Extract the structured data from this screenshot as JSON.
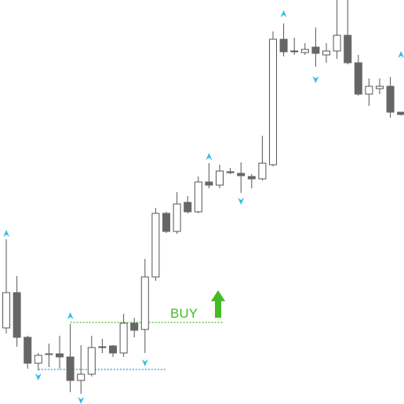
{
  "chart_data": {
    "type": "candlestick",
    "ylim": [
      0,
      515
    ],
    "open": [
      97,
      142,
      85,
      52,
      64,
      64,
      60,
      30,
      38,
      73,
      74,
      65,
      103,
      95,
      162,
      243,
      220,
      257,
      245,
      283,
      279,
      296,
      294,
      290,
      287,
      305,
      465,
      450,
      448,
      455,
      445,
      450,
      470,
      435,
      395,
      402,
      405,
      372
    ],
    "high": [
      210,
      163,
      87,
      65,
      77,
      87,
      102,
      75,
      87,
      83,
      75,
      115,
      110,
      185,
      250,
      245,
      270,
      265,
      290,
      307,
      305,
      301,
      308,
      293,
      342,
      475,
      485,
      467,
      460,
      480,
      460,
      515,
      515,
      445,
      415,
      415,
      417,
      372
    ],
    "low": [
      90,
      73,
      45,
      43,
      47,
      45,
      15,
      13,
      35,
      65,
      60,
      60,
      85,
      65,
      157,
      218,
      217,
      243,
      243,
      275,
      275,
      293,
      269,
      275,
      285,
      303,
      443,
      445,
      445,
      430,
      435,
      440,
      433,
      393,
      380,
      395,
      365,
      368
    ],
    "close": [
      142,
      85,
      52,
      62,
      63,
      60,
      30,
      38,
      72,
      73,
      65,
      103,
      94,
      162,
      243,
      220,
      255,
      245,
      283,
      279,
      297,
      296,
      291,
      287,
      307,
      465,
      449,
      450,
      452,
      447,
      450,
      470,
      435,
      395,
      405,
      405,
      372,
      369
    ],
    "bull_color": "#ffffff",
    "bear_color": "#666666",
    "outline_color": "#555555",
    "up_markers": {
      "index": [
        0,
        6,
        19,
        26,
        37
      ],
      "values": [
        217,
        112,
        315,
        497,
        445
      ],
      "color": "#33bbee"
    },
    "down_markers": {
      "index": [
        3,
        7,
        13,
        22,
        29
      ],
      "values": [
        35,
        5,
        53,
        259,
        414
      ],
      "color": "#33bbee"
    },
    "levels": [
      {
        "value": 104,
        "from": 6,
        "to": 20.4,
        "color": "#44bb22"
      },
      {
        "value": 44,
        "from": 3,
        "to": 15,
        "color": "#2299dd"
      }
    ],
    "signal": {
      "label": "BUY",
      "color": "#44bb22"
    }
  }
}
